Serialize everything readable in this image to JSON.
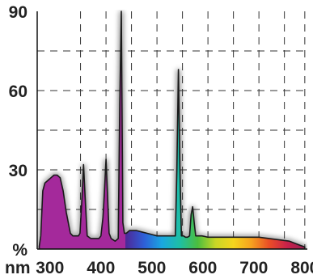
{
  "chart_data": {
    "type": "area",
    "title": "",
    "xlabel": "nm",
    "ylabel": "%",
    "xlim": [
      275,
      805
    ],
    "ylim": [
      0,
      90
    ],
    "x_ticks": [
      {
        "value": 300,
        "label": "300"
      },
      {
        "value": 400,
        "label": "400"
      },
      {
        "value": 500,
        "label": "500"
      },
      {
        "value": 600,
        "label": "600"
      },
      {
        "value": 700,
        "label": "700"
      },
      {
        "value": 800,
        "label": "800"
      }
    ],
    "y_ticks": [
      {
        "value": 0,
        "label": "%"
      },
      {
        "value": 30,
        "label": "30"
      },
      {
        "value": 60,
        "label": "60"
      },
      {
        "value": 90,
        "label": "90"
      }
    ],
    "grid": true,
    "grid_x": [
      360,
      410,
      460,
      510,
      560,
      610,
      660,
      710,
      760,
      800
    ],
    "grid_y": [
      15,
      30,
      45,
      60,
      75
    ],
    "series": [
      {
        "name": "",
        "x": [
          279,
          282,
          286,
          290,
          296,
          302,
          308,
          314,
          320,
          326,
          332,
          340,
          345,
          350,
          356,
          359,
          363,
          366,
          369,
          373,
          380,
          390,
          396,
          400,
          404,
          407,
          410,
          413,
          416,
          420,
          428,
          434,
          437,
          440,
          443,
          446,
          450,
          456,
          462,
          470,
          480,
          490,
          500,
          510,
          520,
          530,
          540,
          546,
          549,
          552,
          555,
          558,
          562,
          566,
          570,
          574,
          577,
          580,
          583,
          586,
          590,
          598,
          610,
          630,
          650,
          670,
          690,
          710,
          730,
          750,
          770,
          790,
          800
        ],
        "y": [
          1,
          5,
          22,
          25,
          26,
          27,
          28,
          28,
          27,
          22,
          14,
          6,
          5,
          5,
          5,
          6,
          20,
          32,
          20,
          5,
          4,
          4,
          4,
          5,
          12,
          22,
          34,
          20,
          6,
          4,
          3,
          4,
          55,
          90,
          10,
          6,
          6,
          7,
          7,
          7,
          6.5,
          6,
          5.5,
          5,
          5,
          5,
          5,
          5,
          30,
          68,
          30,
          5,
          5,
          4.5,
          4.5,
          5,
          13,
          16,
          10,
          5,
          5,
          5,
          4.5,
          4.5,
          4.5,
          4.5,
          4.5,
          4.5,
          4,
          3.5,
          3,
          1.5,
          0.8
        ]
      }
    ],
    "colors": {
      "uv_band": "#a4299b",
      "spectrum": [
        "#4c2a9a",
        "#2e5fd8",
        "#1aa7e0",
        "#1ebfa4",
        "#4cbe3e",
        "#c9d626",
        "#f4d51e",
        "#f5a21f",
        "#ea4d26",
        "#c8214a",
        "#9b1f52"
      ],
      "outline": "#1a1a1a",
      "grid": "#333333"
    }
  }
}
